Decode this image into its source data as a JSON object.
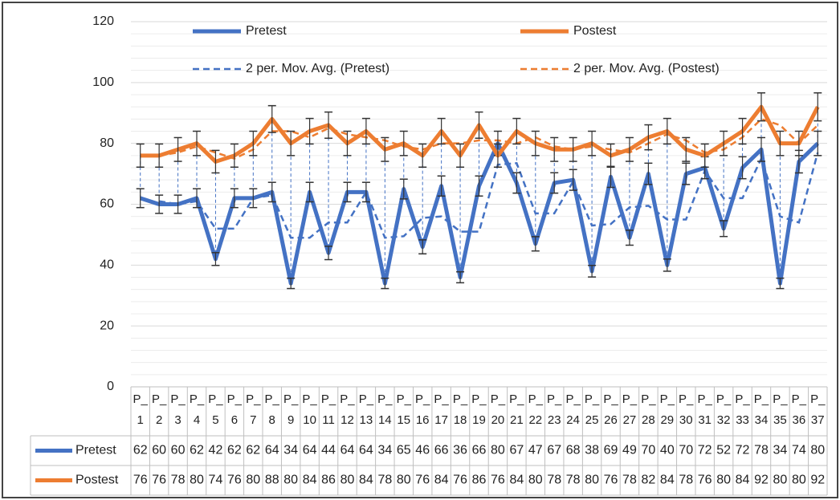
{
  "chart_data": {
    "type": "line",
    "categories": [
      "P_1",
      "P_2",
      "P_3",
      "P_4",
      "P_5",
      "P_6",
      "P_7",
      "P_8",
      "P_9",
      "P_10",
      "P_11",
      "P_12",
      "P_13",
      "P_14",
      "P_15",
      "P_16",
      "P_17",
      "P_18",
      "P_19",
      "P_20",
      "P_21",
      "P_22",
      "P_23",
      "P_24",
      "P_25",
      "P_26",
      "P_27",
      "P_28",
      "P_29",
      "P_30",
      "P_31",
      "P_32",
      "P_33",
      "P_34",
      "P_35",
      "P_36",
      "P_37"
    ],
    "series": [
      {
        "name": "Pretest",
        "color": "#4472c4",
        "values": [
          62,
          60,
          60,
          62,
          42,
          62,
          62,
          64,
          34,
          64,
          44,
          64,
          64,
          34,
          65,
          46,
          66,
          36,
          66,
          80,
          67,
          47,
          67,
          68,
          38,
          69,
          49,
          70,
          40,
          70,
          72,
          52,
          72,
          78,
          34,
          74,
          80
        ],
        "errors": [
          3.1,
          3,
          3,
          3.1,
          2.1,
          3.1,
          3.1,
          3.2,
          1.7,
          3.2,
          2.2,
          3.2,
          3.2,
          1.7,
          3.25,
          2.3,
          3.3,
          1.8,
          3.3,
          4,
          3.35,
          2.35,
          3.35,
          3.4,
          1.9,
          3.45,
          2.45,
          3.5,
          2,
          3.5,
          3.6,
          2.6,
          3.6,
          3.9,
          1.7,
          3.7,
          4
        ]
      },
      {
        "name": "Postest",
        "color": "#ed7d31",
        "values": [
          76,
          76,
          78,
          80,
          74,
          76,
          80,
          88,
          80,
          84,
          86,
          80,
          84,
          78,
          80,
          76,
          84,
          76,
          86,
          76,
          84,
          80,
          78,
          78,
          80,
          76,
          78,
          82,
          84,
          78,
          76,
          80,
          84,
          92,
          80,
          80,
          92
        ],
        "errors": [
          3.8,
          3.8,
          3.9,
          4,
          3.7,
          3.8,
          4,
          4.4,
          4,
          4.2,
          4.3,
          4,
          4.2,
          3.9,
          4,
          3.8,
          4.2,
          3.8,
          4.3,
          3.8,
          4.2,
          4,
          3.9,
          3.9,
          4,
          3.8,
          3.9,
          4.1,
          4.2,
          3.9,
          3.8,
          4,
          4.2,
          4.6,
          4,
          4,
          4.6
        ]
      }
    ],
    "trendlines": [
      {
        "name": "2 per. Mov. Avg. (Pretest)",
        "color": "#4472c4",
        "values": [
          null,
          61,
          60,
          61,
          52,
          52,
          62,
          63,
          49,
          49,
          54,
          54,
          64,
          49,
          49.5,
          55.5,
          56,
          51,
          51,
          73,
          73.5,
          57,
          57,
          67.5,
          53,
          53.5,
          59,
          59.5,
          55,
          55,
          71,
          62,
          62,
          75,
          56,
          54,
          77
        ]
      },
      {
        "name": "2 per. Mov. Avg. (Postest)",
        "color": "#ed7d31",
        "values": [
          null,
          76,
          77,
          79,
          77,
          75,
          78,
          84,
          84,
          82,
          85,
          83,
          82,
          81,
          79,
          78,
          80,
          80,
          81,
          81,
          80,
          82,
          79,
          78,
          79,
          78,
          77,
          80,
          83,
          81,
          77,
          78,
          82,
          88,
          86,
          80,
          86
        ]
      }
    ],
    "ylim": [
      0,
      120
    ],
    "yticks": [
      0,
      20,
      40,
      60,
      80,
      100,
      120
    ],
    "grid": true,
    "minor_grid": true,
    "drop_lines": true,
    "data_table": true
  }
}
